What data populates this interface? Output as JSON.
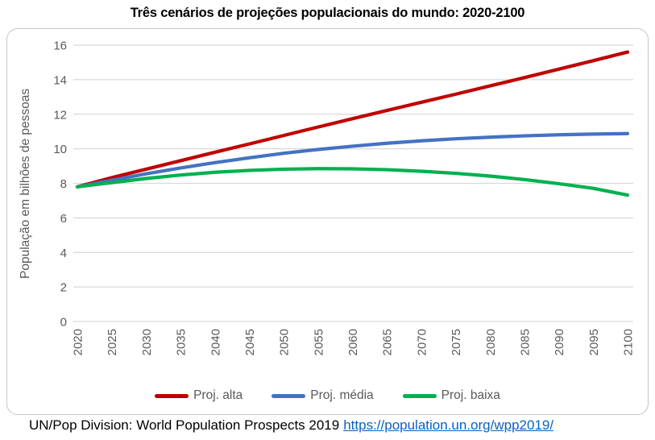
{
  "title": "Três cenários de projeções populacionais do mundo: 2020-2100",
  "source": {
    "text": "UN/Pop Division: World Population Prospects 2019",
    "link": "https://population.un.org/wpp2019/"
  },
  "colors": {
    "proj_alta": "#c00000",
    "proj_media": "#4472c4",
    "proj_baixa": "#00b050",
    "gridline": "#d9d9d9",
    "axis_text": "#595959",
    "chart_border": "#c6c6c6",
    "link": "#0563c1"
  },
  "chart_data": {
    "type": "line",
    "title": "Três cenários de projeções populacionais do mundo: 2020-2100",
    "xlabel": "",
    "ylabel": "População em bilhões de pessoas",
    "x": [
      2020,
      2025,
      2030,
      2035,
      2040,
      2045,
      2050,
      2055,
      2060,
      2065,
      2070,
      2075,
      2080,
      2085,
      2090,
      2095,
      2100
    ],
    "series": [
      {
        "name": "Proj. alta",
        "color": "#c00000",
        "values": [
          7.8,
          8.33,
          8.82,
          9.31,
          9.8,
          10.28,
          10.77,
          11.26,
          11.74,
          12.22,
          12.69,
          13.16,
          13.64,
          14.12,
          14.61,
          15.1,
          15.6
        ]
      },
      {
        "name": "Proj. média",
        "color": "#4472c4",
        "values": [
          7.8,
          8.18,
          8.55,
          8.89,
          9.2,
          9.48,
          9.74,
          9.96,
          10.15,
          10.32,
          10.46,
          10.58,
          10.67,
          10.75,
          10.81,
          10.85,
          10.88
        ]
      },
      {
        "name": "Proj. baixa",
        "color": "#00b050",
        "values": [
          7.8,
          8.04,
          8.28,
          8.48,
          8.64,
          8.75,
          8.82,
          8.85,
          8.84,
          8.79,
          8.7,
          8.58,
          8.42,
          8.22,
          7.98,
          7.71,
          7.32
        ]
      }
    ],
    "ylim": [
      0,
      16
    ],
    "yticks": [
      0,
      2,
      4,
      6,
      8,
      10,
      12,
      14,
      16
    ],
    "grid": true,
    "legend_position": "bottom"
  }
}
